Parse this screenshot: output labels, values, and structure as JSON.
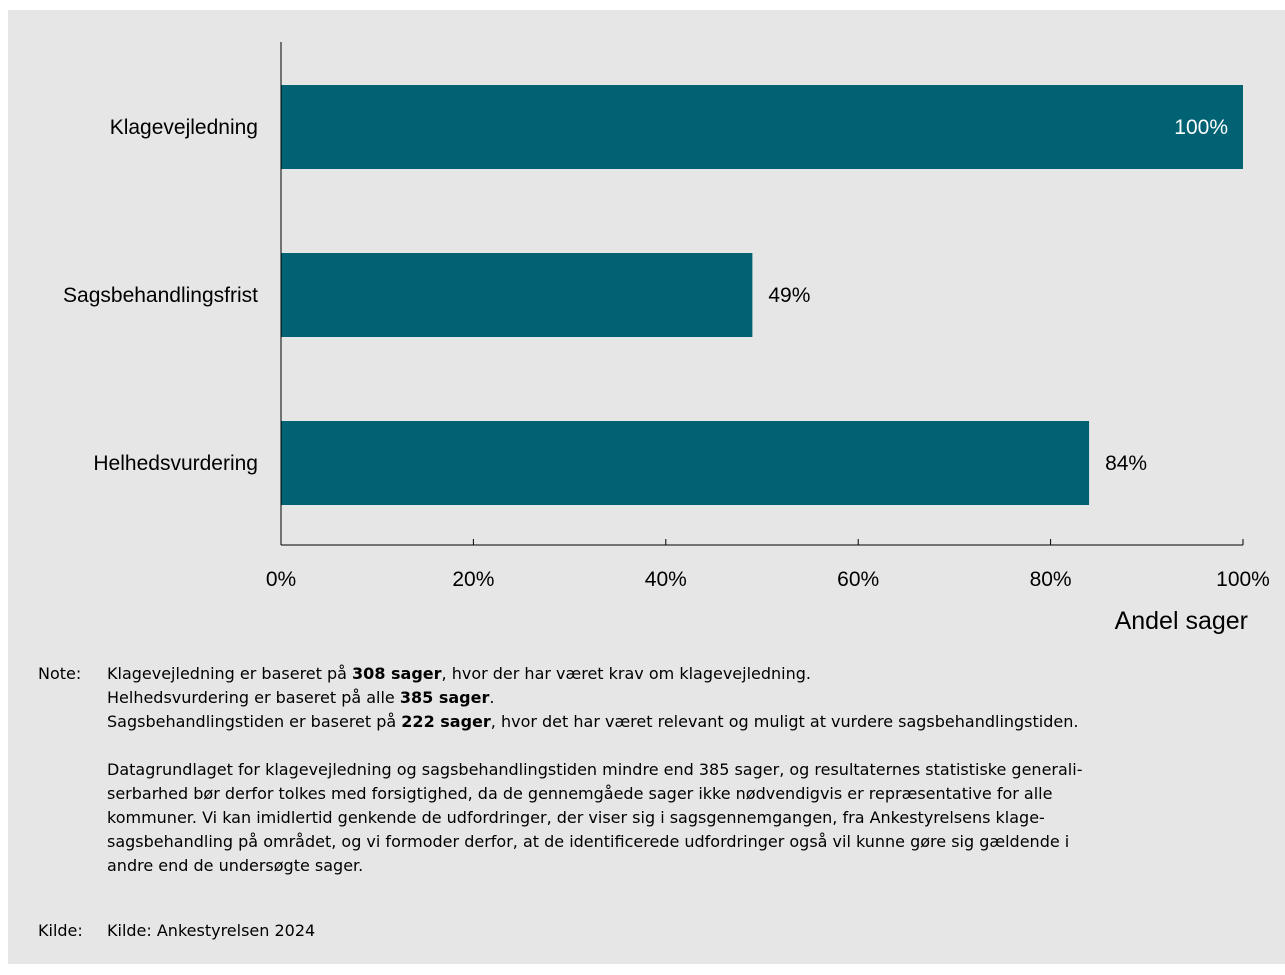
{
  "chart_data": {
    "type": "bar",
    "orientation": "horizontal",
    "categories": [
      "Klagevejledning",
      "Sagsbehandlingsfrist",
      "Helhedsvurdering"
    ],
    "values": [
      100,
      49,
      84
    ],
    "value_labels": [
      "100%",
      "49%",
      "84%"
    ],
    "xlabel": "Andel sager",
    "xlim": [
      0,
      100
    ],
    "x_ticks": [
      0,
      20,
      40,
      60,
      80,
      100
    ],
    "x_tick_labels": [
      "0%",
      "20%",
      "40%",
      "60%",
      "80%",
      "100%"
    ],
    "grid": false,
    "legend": "none",
    "bar_color": "#006272"
  },
  "notes": {
    "label": "Note:",
    "line1": {
      "pre": "Klagevejledning er baseret på ",
      "bold": "308 sager",
      "post": ", hvor der har været krav om klagevejledning."
    },
    "line2": {
      "pre": "Helhedsvurdering er baseret på alle ",
      "bold": "385 sager",
      "post": "."
    },
    "line3": {
      "pre": "Sagsbehandlingstiden er baseret på ",
      "bold": "222 sager",
      "post": ", hvor det har været relevant og muligt at vurdere sagsbehandlingstiden."
    },
    "paragraph_lines": [
      "Datagrundlaget for klagevejledning og sagsbehandlingstiden mindre end 385 sager, og resultaternes statistiske generali-",
      "serbarhed bør derfor tolkes med forsigtighed, da de gennemgåede sager ikke nødvendigvis er repræsentative for alle",
      "kommuner. Vi kan imidlertid genkende de udfordringer, der viser sig i sagsgennemgangen, fra Ankestyrelsens klage-",
      "sagsbehandling på området, og vi formoder derfor, at de identificerede udfordringer også vil kunne gøre sig gældende i",
      "andre end de undersøgte sager."
    ]
  },
  "source": {
    "label": "Kilde:",
    "text": "Kilde: Ankestyrelsen 2024"
  }
}
